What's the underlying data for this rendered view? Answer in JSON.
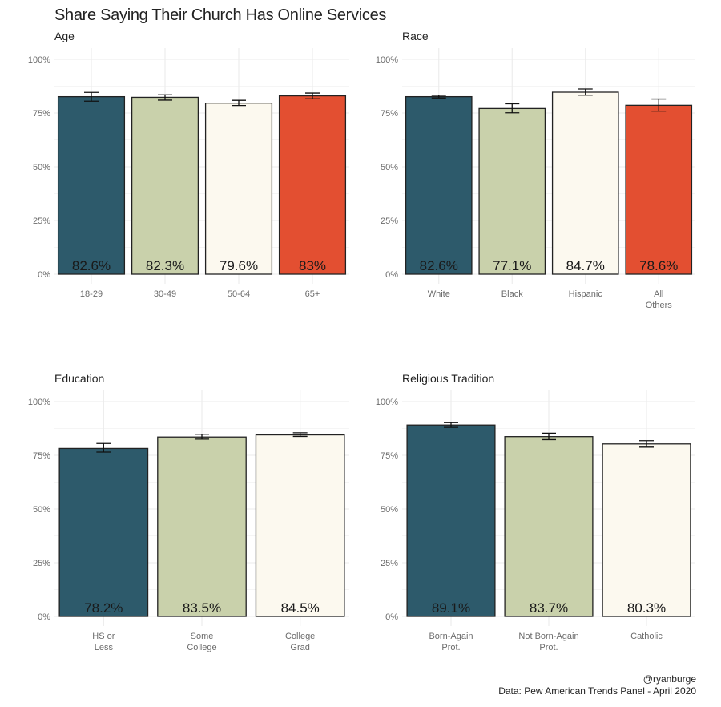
{
  "title": "Share Saying Their Church Has Online Services",
  "footer": {
    "handle": "@ryanburge",
    "source": "Data: Pew American Trends Panel - April 2020"
  },
  "colors": {
    "blue": "#2d5a6b",
    "sage": "#c9d1ab",
    "cream": "#fcf9ef",
    "orange": "#e34f31",
    "grid": "#ebebeb",
    "axis_text": "#6b6b6b",
    "bar_outline": "#222222"
  },
  "chart_data": [
    {
      "type": "bar",
      "title": "Age",
      "categories": [
        "18-29",
        "30-49",
        "50-64",
        "65+"
      ],
      "values": [
        82.6,
        82.3,
        79.6,
        83
      ],
      "labels": [
        "82.6%",
        "82.3%",
        "79.6%",
        "83%"
      ],
      "error_low": [
        80.5,
        81.0,
        78.5,
        81.6
      ],
      "error_high": [
        84.6,
        83.5,
        80.9,
        84.3
      ],
      "fill": [
        "blue",
        "sage",
        "cream",
        "orange"
      ],
      "yticks": [
        "0%",
        "25%",
        "50%",
        "75%",
        "100%"
      ],
      "ylim": [
        0,
        100
      ],
      "xlabel": "",
      "ylabel": "",
      "grid": true
    },
    {
      "type": "bar",
      "title": "Race",
      "categories": [
        "White",
        "Black",
        "Hispanic",
        "All\nOthers"
      ],
      "values": [
        82.6,
        77.1,
        84.7,
        78.6
      ],
      "labels": [
        "82.6%",
        "77.1%",
        "84.7%",
        "78.6%"
      ],
      "error_low": [
        82.0,
        75.1,
        83.3,
        75.9
      ],
      "error_high": [
        83.2,
        79.3,
        86.2,
        81.5
      ],
      "fill": [
        "blue",
        "sage",
        "cream",
        "orange"
      ],
      "yticks": [
        "0%",
        "25%",
        "50%",
        "75%",
        "100%"
      ],
      "ylim": [
        0,
        100
      ],
      "xlabel": "",
      "ylabel": "",
      "grid": true
    },
    {
      "type": "bar",
      "title": "Education",
      "categories": [
        "HS or\nLess",
        "Some\nCollege",
        "College\nGrad"
      ],
      "values": [
        78.2,
        83.5,
        84.5
      ],
      "labels": [
        "78.2%",
        "83.5%",
        "84.5%"
      ],
      "error_low": [
        76.5,
        82.5,
        83.8
      ],
      "error_high": [
        80.5,
        84.8,
        85.5
      ],
      "fill": [
        "blue",
        "sage",
        "cream"
      ],
      "yticks": [
        "0%",
        "25%",
        "50%",
        "75%",
        "100%"
      ],
      "ylim": [
        0,
        100
      ],
      "xlabel": "",
      "ylabel": "",
      "grid": true
    },
    {
      "type": "bar",
      "title": "Religious Tradition",
      "categories": [
        "Born-Again\nProt.",
        "Not Born-Again\nProt.",
        "Catholic"
      ],
      "values": [
        89.1,
        83.7,
        80.3
      ],
      "labels": [
        "89.1%",
        "83.7%",
        "80.3%"
      ],
      "error_low": [
        88.0,
        82.3,
        78.8
      ],
      "error_high": [
        90.2,
        85.3,
        81.8
      ],
      "fill": [
        "blue",
        "sage",
        "cream"
      ],
      "yticks": [
        "0%",
        "25%",
        "50%",
        "75%",
        "100%"
      ],
      "ylim": [
        0,
        100
      ],
      "xlabel": "",
      "ylabel": "",
      "grid": true
    }
  ]
}
